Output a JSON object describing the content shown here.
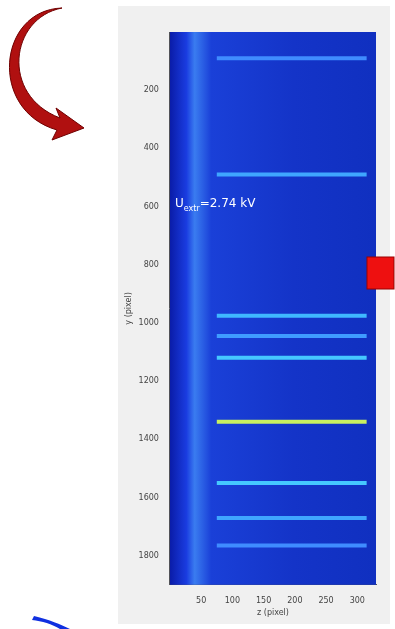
{
  "chart_data": {
    "type": "line",
    "x_label": "z (pixel)",
    "y_label": "y (pixel)",
    "xlim": [
      0,
      330
    ],
    "xticks": [
      50,
      100,
      150,
      200,
      250,
      300
    ],
    "ylim": [
      0,
      1900
    ],
    "yticks": [
      200,
      400,
      600,
      800,
      1000,
      1200,
      1400,
      1600,
      1800
    ],
    "grid": false,
    "annotation": {
      "base": "U",
      "subscript": "extr",
      "text": "=2.74 kV",
      "x": 8,
      "y": 600
    },
    "streaks": [
      {
        "x": [
          75,
          315
        ],
        "y": 90,
        "color": "#3f8cff"
      },
      {
        "x": [
          75,
          315
        ],
        "y": 490,
        "color": "#3fa6ff"
      },
      {
        "x": [
          75,
          315
        ],
        "y": 975,
        "color": "#3fb8ff"
      },
      {
        "x": [
          75,
          315
        ],
        "y": 1045,
        "color": "#3f9cff"
      },
      {
        "x": [
          75,
          315
        ],
        "y": 1120,
        "color": "#45c8ff"
      },
      {
        "x": [
          75,
          315
        ],
        "y": 1340,
        "color": "#c8f060"
      },
      {
        "x": [
          75,
          315
        ],
        "y": 1550,
        "color": "#45c8ff"
      },
      {
        "x": [
          75,
          315
        ],
        "y": 1670,
        "color": "#3fa6ff"
      },
      {
        "x": [
          75,
          315
        ],
        "y": 1765,
        "color": "#3f8cff"
      }
    ]
  }
}
